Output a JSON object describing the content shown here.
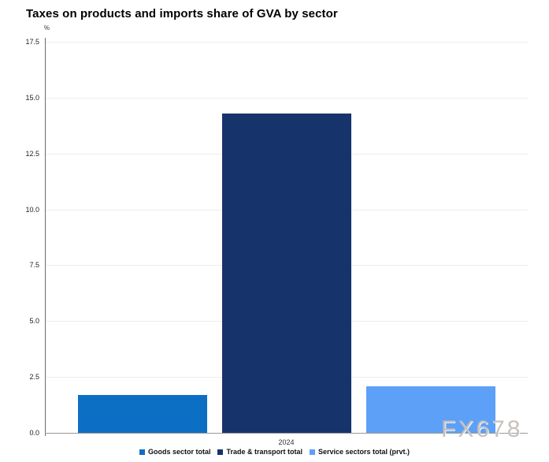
{
  "title": "Taxes on products and imports share of GVA by sector",
  "watermark": "FX678",
  "chart_data": {
    "type": "bar",
    "title": "Taxes on products and imports share of GVA by sector",
    "unit_label": "%",
    "categories": [
      "2024"
    ],
    "series": [
      {
        "name": "Goods sector total",
        "color": "#0d6fc4",
        "values": [
          1.7
        ]
      },
      {
        "name": "Trade & transport total",
        "color": "#17336b",
        "values": [
          14.3
        ]
      },
      {
        "name": "Service sectors total (prvt.)",
        "color": "#5da0f8",
        "values": [
          2.1
        ]
      }
    ],
    "ylabel": "%",
    "xlabel": "",
    "ylim": [
      0,
      17.5
    ],
    "yticks": [
      "0.0",
      "2.5",
      "5.0",
      "7.5",
      "10.0",
      "12.5",
      "15.0",
      "17.5"
    ],
    "grid": true,
    "legend_position": "bottom"
  }
}
